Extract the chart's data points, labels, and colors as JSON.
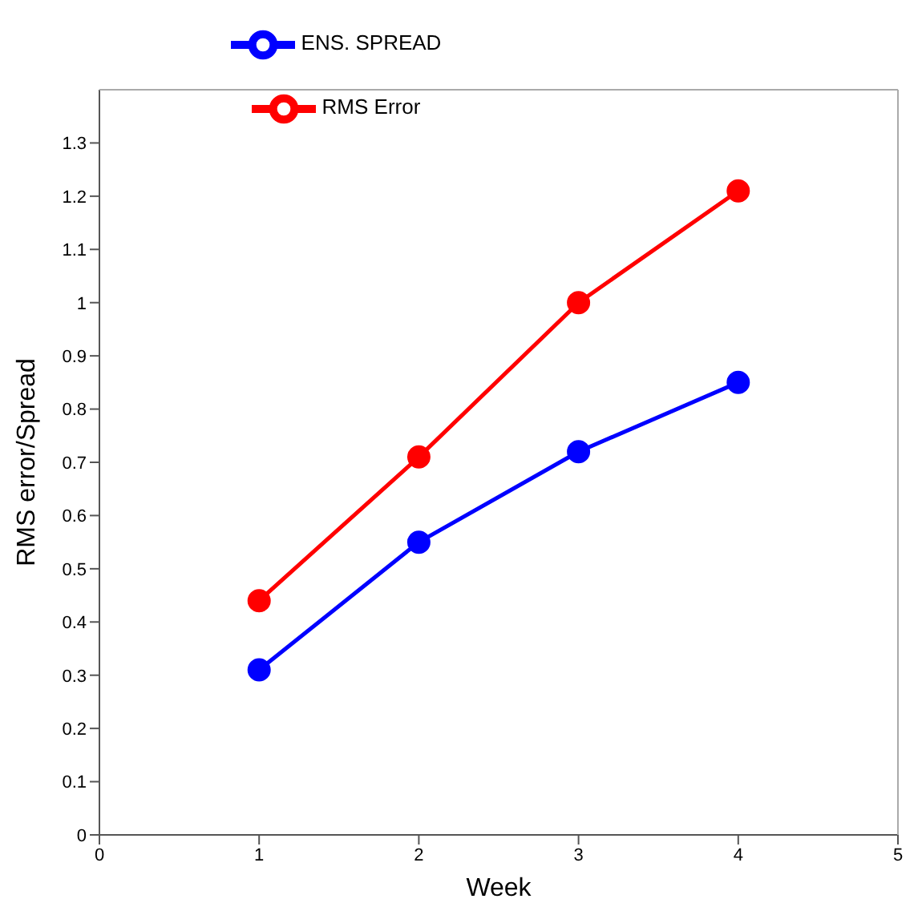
{
  "chart_data": {
    "type": "line",
    "xlabel": "Week",
    "ylabel": "RMS error/Spread",
    "x": [
      1,
      2,
      3,
      4
    ],
    "series": [
      {
        "name": "ENS. SPREAD",
        "color": "#0000ff",
        "values": [
          0.31,
          0.55,
          0.72,
          0.85
        ]
      },
      {
        "name": "RMS Error",
        "color": "#ff0000",
        "values": [
          0.44,
          0.71,
          1.0,
          1.21
        ]
      }
    ],
    "xlim": [
      0,
      5
    ],
    "xticks": [
      0,
      1,
      2,
      3,
      4,
      5
    ],
    "ylim": [
      0,
      1.4
    ],
    "yticks": [
      0,
      0.1,
      0.2,
      0.3,
      0.4,
      0.5,
      0.6,
      0.7,
      0.8,
      0.9,
      1,
      1.1,
      1.2,
      1.3
    ],
    "grid": false,
    "legend": "top",
    "marker": "circle",
    "line_style": "solid"
  }
}
